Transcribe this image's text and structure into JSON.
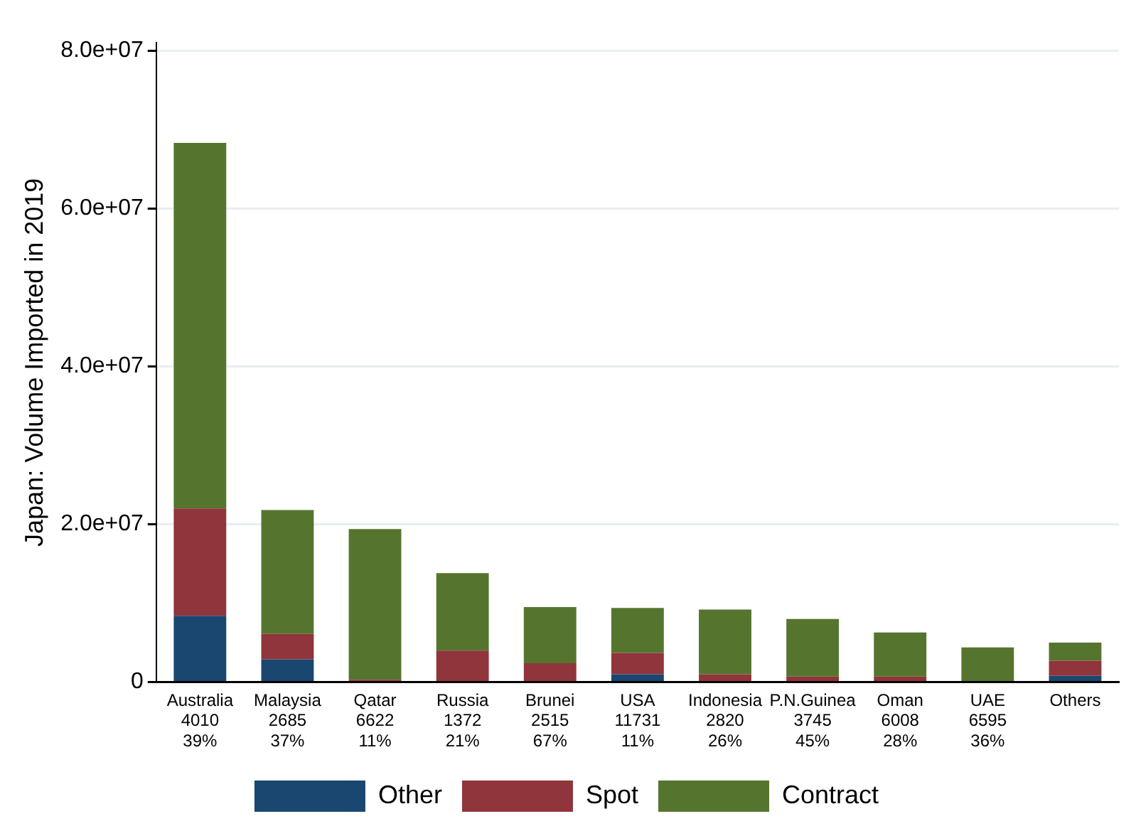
{
  "chart_data": {
    "type": "bar",
    "stacked": true,
    "ylabel": "Japan: Volume Imported in 2019",
    "categories": [
      "Australia\n4010\n39%",
      "Malaysia\n2685\n37%",
      "Qatar\n6622\n11%",
      "Russia\n1372\n21%",
      "Brunei\n2515\n67%",
      "USA\n11731\n11%",
      "Indonesia\n2820\n26%",
      "P.N.Guinea\n3745\n45%",
      "Oman\n6008\n28%",
      "UAE\n6595\n36%",
      "Others"
    ],
    "series": [
      {
        "name": "Other",
        "color": "#1a476f",
        "values": [
          8400000,
          2900000,
          0,
          null,
          0,
          1000000,
          0,
          0,
          0,
          0,
          800000
        ]
      },
      {
        "name": "Spot",
        "color": "#90353b",
        "values": [
          13600000,
          3200000,
          300000,
          4000000,
          2400000,
          2700000,
          1000000,
          700000,
          700000,
          0,
          1900000
        ]
      },
      {
        "name": "Contract",
        "color": "#55752f",
        "values": [
          46300000,
          15700000,
          19100000,
          9800000,
          7100000,
          5700000,
          8200000,
          7300000,
          5600000,
          4400000,
          2300000
        ]
      }
    ],
    "ylim": [
      0,
      81000000
    ],
    "yticks": [
      {
        "value": 0,
        "label": "0"
      },
      {
        "value": 20000000,
        "label": "2.0e+07"
      },
      {
        "value": 40000000,
        "label": "4.0e+07"
      },
      {
        "value": 60000000,
        "label": "6.0e+07"
      },
      {
        "value": 80000000,
        "label": "8.0e+07"
      }
    ],
    "grid": "y",
    "legend": "bottom"
  }
}
